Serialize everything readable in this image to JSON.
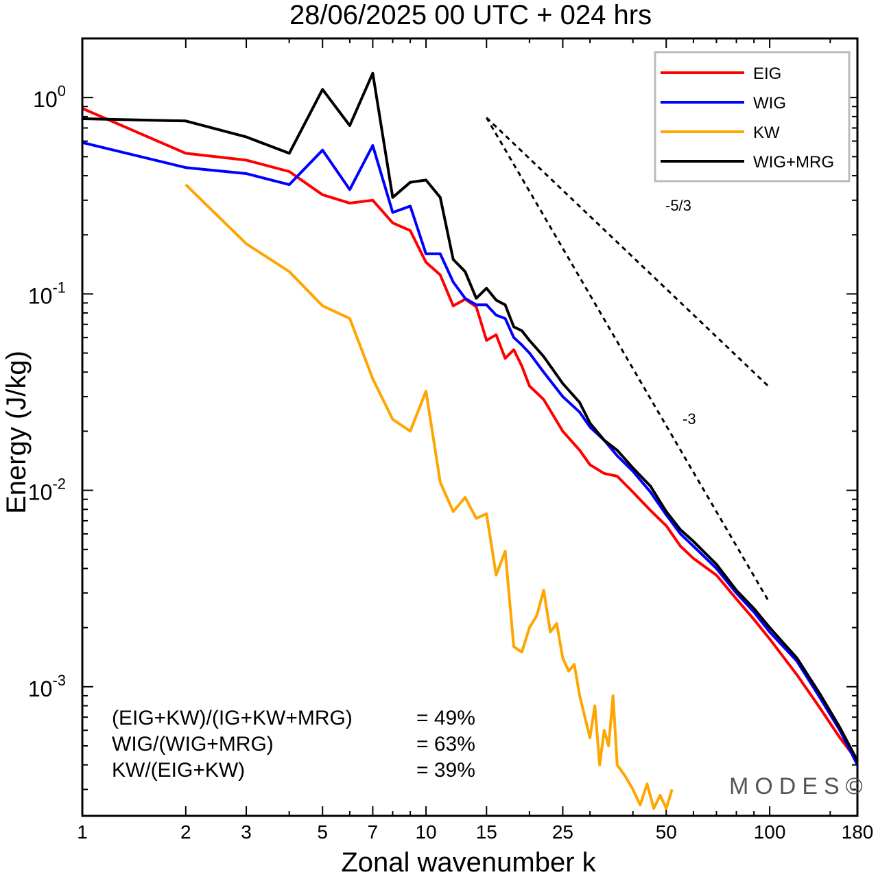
{
  "chart_data": {
    "type": "line",
    "title": "28/06/2025  00 UTC  + 024 hrs",
    "xlabel": "Zonal wavenumber k",
    "ylabel": "Energy (J/kg)",
    "xscale": "log",
    "yscale": "log",
    "xlim": [
      1,
      180
    ],
    "ylim": [
      0.00022,
      2.0
    ],
    "xticks": [
      1,
      2,
      3,
      5,
      7,
      10,
      15,
      25,
      50,
      100,
      180
    ],
    "xtick_labels": [
      "1",
      "2",
      "3",
      "5",
      "7",
      "10",
      "15",
      "25",
      "50",
      "100",
      "180"
    ],
    "yticks": [
      {
        "value": 1,
        "base": "10",
        "exp": "0"
      },
      {
        "value": 0.1,
        "base": "10",
        "exp": "-1"
      },
      {
        "value": 0.01,
        "base": "10",
        "exp": "-2"
      },
      {
        "value": 0.001,
        "base": "10",
        "exp": "-3"
      }
    ],
    "legend_position": "top-right",
    "grid": false,
    "series": [
      {
        "name": "EIG",
        "color": "#ff0000",
        "x": [
          1,
          2,
          3,
          4,
          5,
          6,
          7,
          8,
          9,
          10,
          11,
          12,
          13,
          14,
          15,
          16,
          17,
          18,
          19,
          20,
          22,
          25,
          28,
          30,
          33,
          36,
          40,
          45,
          50,
          55,
          60,
          70,
          80,
          90,
          100,
          120,
          140,
          160,
          180
        ],
        "y": [
          0.88,
          0.52,
          0.48,
          0.42,
          0.32,
          0.29,
          0.3,
          0.23,
          0.21,
          0.145,
          0.125,
          0.087,
          0.094,
          0.086,
          0.058,
          0.062,
          0.047,
          0.052,
          0.043,
          0.034,
          0.029,
          0.02,
          0.016,
          0.0135,
          0.0122,
          0.0118,
          0.0098,
          0.0079,
          0.0066,
          0.0052,
          0.0045,
          0.0037,
          0.0028,
          0.0022,
          0.00175,
          0.00115,
          0.00078,
          0.00055,
          0.00042
        ]
      },
      {
        "name": "WIG",
        "color": "#0000ff",
        "x": [
          1,
          2,
          3,
          4,
          5,
          6,
          7,
          8,
          9,
          10,
          11,
          12,
          13,
          14,
          15,
          16,
          17,
          18,
          19,
          20,
          22,
          25,
          28,
          30,
          33,
          36,
          40,
          45,
          50,
          55,
          60,
          70,
          80,
          90,
          100,
          120,
          140,
          160,
          180
        ],
        "y": [
          0.59,
          0.44,
          0.41,
          0.36,
          0.54,
          0.34,
          0.57,
          0.26,
          0.28,
          0.16,
          0.16,
          0.115,
          0.095,
          0.088,
          0.088,
          0.078,
          0.075,
          0.06,
          0.055,
          0.05,
          0.04,
          0.03,
          0.025,
          0.021,
          0.018,
          0.015,
          0.0125,
          0.0098,
          0.0075,
          0.006,
          0.0052,
          0.004,
          0.003,
          0.0024,
          0.0019,
          0.00135,
          0.00088,
          0.0006,
          0.0004
        ]
      },
      {
        "name": "KW",
        "color": "#ffa500",
        "x": [
          2,
          3,
          4,
          5,
          6,
          7,
          8,
          9,
          10,
          11,
          12,
          13,
          14,
          15,
          16,
          17,
          18,
          19,
          20,
          21,
          22,
          23,
          24,
          25,
          26,
          27,
          28,
          29,
          30,
          31,
          32,
          33,
          34,
          35,
          36,
          38,
          40,
          42,
          44,
          46,
          48,
          50,
          52
        ],
        "y": [
          0.36,
          0.18,
          0.13,
          0.087,
          0.075,
          0.037,
          0.023,
          0.02,
          0.032,
          0.011,
          0.0078,
          0.0092,
          0.0072,
          0.0076,
          0.0037,
          0.0049,
          0.0016,
          0.0015,
          0.002,
          0.0023,
          0.0031,
          0.0019,
          0.0021,
          0.0014,
          0.0012,
          0.0013,
          0.0009,
          0.0007,
          0.00055,
          0.0008,
          0.0004,
          0.0006,
          0.0005,
          0.0009,
          0.0004,
          0.00035,
          0.0003,
          0.00025,
          0.00032,
          0.00024,
          0.00028,
          0.00024,
          0.0003
        ]
      },
      {
        "name": "WIG+MRG",
        "color": "#000000",
        "x": [
          1,
          2,
          3,
          4,
          5,
          6,
          7,
          8,
          9,
          10,
          11,
          12,
          13,
          14,
          15,
          16,
          17,
          18,
          19,
          20,
          22,
          25,
          28,
          30,
          33,
          36,
          40,
          45,
          50,
          55,
          60,
          70,
          80,
          90,
          100,
          120,
          140,
          160,
          180
        ],
        "y": [
          0.78,
          0.76,
          0.63,
          0.52,
          1.1,
          0.72,
          1.33,
          0.31,
          0.37,
          0.38,
          0.31,
          0.15,
          0.13,
          0.095,
          0.107,
          0.093,
          0.088,
          0.068,
          0.065,
          0.058,
          0.048,
          0.035,
          0.028,
          0.022,
          0.018,
          0.016,
          0.013,
          0.0105,
          0.0078,
          0.0063,
          0.0055,
          0.0042,
          0.0031,
          0.0025,
          0.002,
          0.0014,
          0.00092,
          0.00062,
          0.00042
        ]
      }
    ],
    "reference_slopes": [
      {
        "label": "-5/3",
        "slope": -1.6667,
        "x": [
          15,
          100
        ],
        "y": [
          0.79,
          0.0334
        ]
      },
      {
        "label": "-3",
        "slope": -3,
        "x": [
          15,
          100
        ],
        "y": [
          0.79,
          0.00267
        ]
      }
    ],
    "annotations": [
      {
        "label": "(EIG+KW)/(IG+KW+MRG)",
        "value": "= 49%"
      },
      {
        "label": "WIG/(WIG+MRG)",
        "value": "= 63%"
      },
      {
        "label": "KW/(EIG+KW)",
        "value": "= 39%"
      }
    ],
    "watermark": "MODES©"
  }
}
